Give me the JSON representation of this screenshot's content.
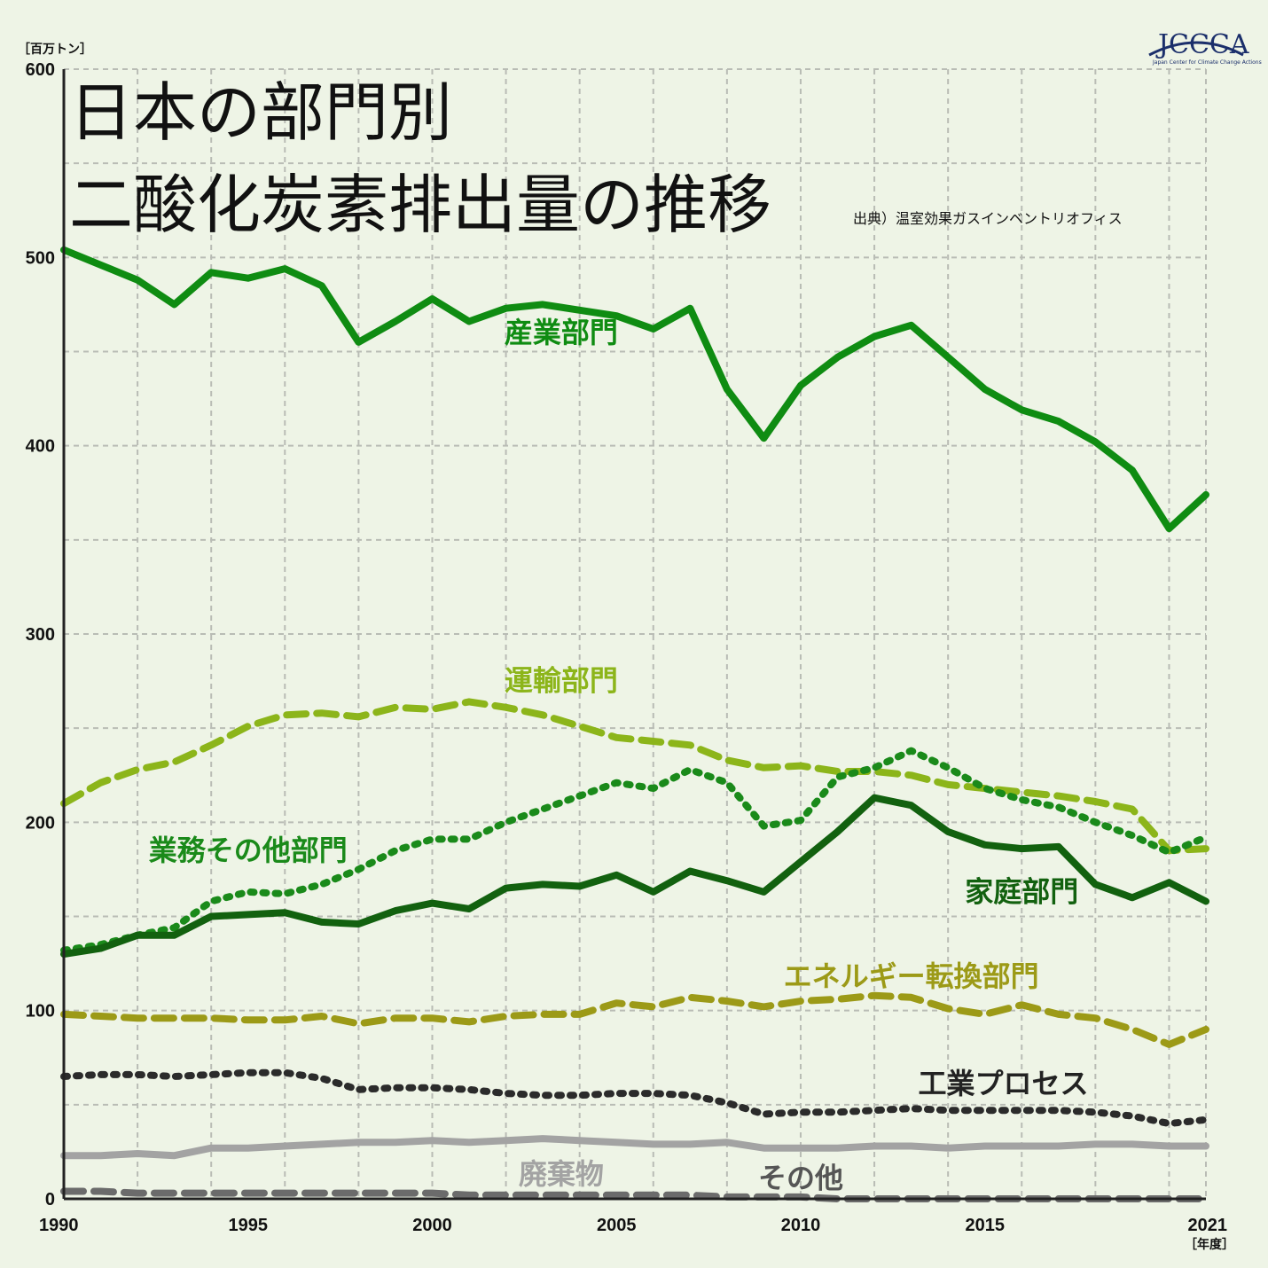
{
  "chart_data": {
    "type": "line",
    "title": [
      "日本の部門別",
      "二酸化炭素排出量の推移"
    ],
    "source": "出典）温室効果ガスインベントリオフィス",
    "ylabel": "［百万トン］",
    "xlabel": "［年度］",
    "ylim": [
      0,
      600
    ],
    "xlim": [
      1990,
      2021
    ],
    "yticks": [
      0,
      100,
      200,
      300,
      400,
      500,
      600
    ],
    "xticks": [
      1990,
      1995,
      2000,
      2005,
      2010,
      2015,
      2021
    ],
    "grid": true,
    "x": [
      1990,
      1991,
      1992,
      1993,
      1994,
      1995,
      1996,
      1997,
      1998,
      1999,
      2000,
      2001,
      2002,
      2003,
      2004,
      2005,
      2006,
      2007,
      2008,
      2009,
      2010,
      2011,
      2012,
      2013,
      2014,
      2015,
      2016,
      2017,
      2018,
      2019,
      2020,
      2021
    ],
    "series": [
      {
        "name": "産業部門",
        "color": "#0f8c12",
        "style": "solid",
        "values": [
          504,
          496,
          488,
          475,
          492,
          489,
          494,
          485,
          455,
          466,
          478,
          466,
          473,
          475,
          472,
          469,
          462,
          473,
          430,
          404,
          432,
          447,
          458,
          464,
          447,
          430,
          419,
          413,
          402,
          387,
          356,
          374
        ]
      },
      {
        "name": "運輸部門",
        "color": "#8cb51a",
        "style": "dashed",
        "values": [
          210,
          221,
          228,
          232,
          241,
          251,
          257,
          258,
          256,
          261,
          260,
          264,
          261,
          257,
          251,
          245,
          243,
          241,
          233,
          229,
          230,
          227,
          227,
          225,
          220,
          218,
          216,
          214,
          211,
          207,
          185,
          186
        ]
      },
      {
        "name": "業務その他部門",
        "color": "#1a8a1a",
        "style": "dotted",
        "values": [
          132,
          135,
          140,
          144,
          158,
          163,
          162,
          167,
          175,
          185,
          191,
          191,
          200,
          207,
          214,
          221,
          218,
          228,
          221,
          198,
          201,
          224,
          229,
          238,
          229,
          218,
          212,
          208,
          200,
          193,
          184,
          192
        ]
      },
      {
        "name": "家庭部門",
        "color": "#12610f",
        "style": "solid",
        "values": [
          130,
          133,
          140,
          140,
          150,
          151,
          152,
          147,
          146,
          153,
          157,
          154,
          165,
          167,
          166,
          172,
          163,
          174,
          169,
          163,
          179,
          195,
          213,
          209,
          195,
          188,
          186,
          187,
          167,
          160,
          168,
          158
        ]
      },
      {
        "name": "エネルギー転換部門",
        "color": "#9c9a17",
        "style": "dashed",
        "values": [
          98,
          97,
          96,
          96,
          96,
          95,
          95,
          97,
          93,
          96,
          96,
          94,
          97,
          98,
          98,
          104,
          102,
          107,
          105,
          102,
          105,
          106,
          108,
          107,
          101,
          98,
          103,
          98,
          96,
          90,
          82,
          90
        ]
      },
      {
        "name": "工業プロセス",
        "color": "#2b2b2b",
        "style": "dotted",
        "values": [
          65,
          66,
          66,
          65,
          66,
          67,
          67,
          64,
          58,
          59,
          59,
          58,
          56,
          55,
          55,
          56,
          56,
          55,
          51,
          45,
          46,
          46,
          47,
          48,
          47,
          47,
          47,
          47,
          46,
          44,
          40,
          42
        ]
      },
      {
        "name": "廃棄物",
        "color": "#a3a3a3",
        "style": "solid",
        "values": [
          23,
          23,
          24,
          23,
          27,
          27,
          28,
          29,
          30,
          30,
          31,
          30,
          31,
          32,
          31,
          30,
          29,
          29,
          30,
          27,
          27,
          27,
          28,
          28,
          27,
          28,
          28,
          28,
          29,
          29,
          28,
          28
        ]
      },
      {
        "name": "その他",
        "color": "#6b6b6b",
        "style": "dashed",
        "values": [
          4,
          4,
          3,
          3,
          3,
          3,
          3,
          3,
          3,
          3,
          3,
          2,
          2,
          2,
          2,
          2,
          2,
          2,
          1,
          1,
          1,
          0,
          0,
          0,
          0,
          0,
          0,
          0,
          0,
          0,
          0,
          0
        ]
      }
    ],
    "labels": [
      {
        "text": "産業部門",
        "x": 2003.5,
        "y": 455,
        "color": "#0f8c12"
      },
      {
        "text": "運輸部門",
        "x": 2003.5,
        "y": 270,
        "color": "#8cb51a"
      },
      {
        "text": "業務その他部門",
        "x": 1995,
        "y": 180,
        "color": "#1a8a1a"
      },
      {
        "text": "家庭部門",
        "x": 2016,
        "y": 158,
        "color": "#12610f"
      },
      {
        "text": "エネルギー転換部門",
        "x": 2013,
        "y": 113,
        "color": "#9c9a17"
      },
      {
        "text": "工業プロセス",
        "x": 2015.5,
        "y": 56,
        "color": "#222222"
      },
      {
        "text": "廃棄物",
        "x": 2003.5,
        "y": 8,
        "color": "#a3a3a3"
      },
      {
        "text": "その他",
        "x": 2010,
        "y": 6,
        "color": "#555555"
      }
    ]
  },
  "logo": {
    "text": "JCCCA",
    "sub": "Japan Center for Climate Change Actions",
    "color": "#1b2f6b"
  }
}
